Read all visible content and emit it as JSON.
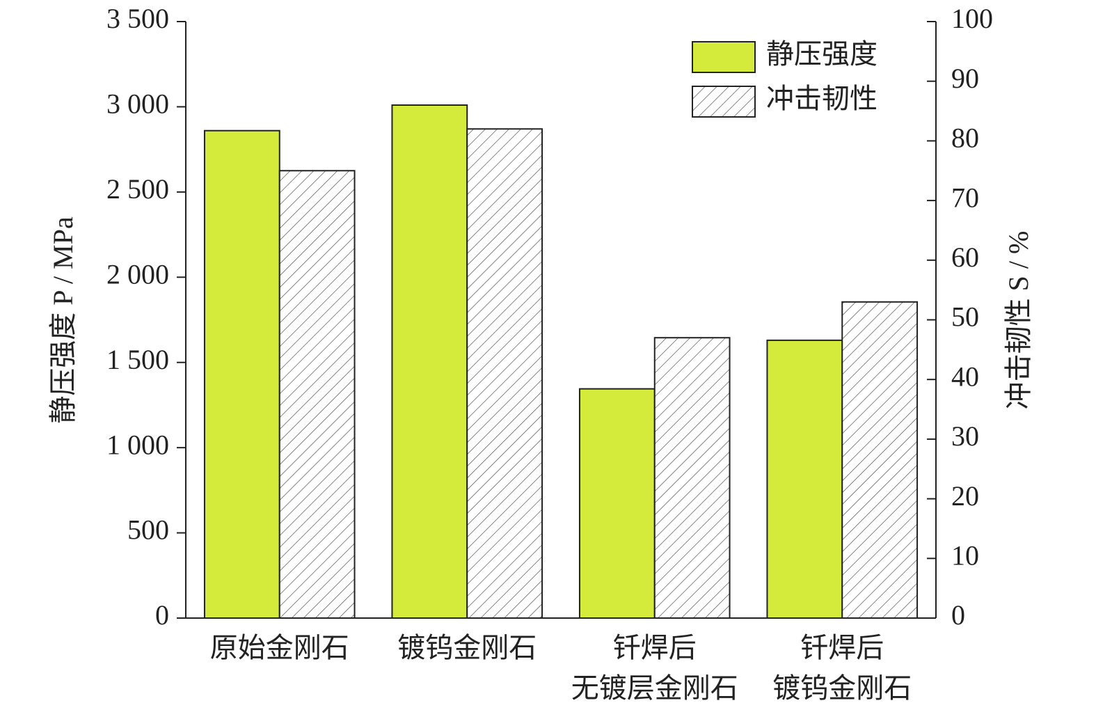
{
  "chart_data": {
    "type": "bar",
    "categories": [
      [
        "原始金刚石"
      ],
      [
        "镀钨金刚石"
      ],
      [
        "钎焊后",
        "无镀层金刚石"
      ],
      [
        "钎焊后",
        "镀钨金刚石"
      ]
    ],
    "series": [
      {
        "name": "静压强度",
        "color": "#d4eb3c",
        "values": [
          2860,
          3010,
          1345,
          1630
        ]
      },
      {
        "name": "冲击韧性",
        "color": "#ffffff",
        "hatch": true,
        "axis": "y2",
        "values": [
          75,
          82,
          47,
          53
        ]
      }
    ],
    "ylabel": "静压强度 P / MPa",
    "y2label": "冲击韧性 S / %",
    "ylim": [
      0,
      3500
    ],
    "yticks": [
      0,
      500,
      {
        "value": 1000,
        "label": "1 000"
      },
      {
        "value": 1500,
        "label": "1 500"
      },
      {
        "value": 2000,
        "label": "2 000"
      },
      {
        "value": 2500,
        "label": "2 500"
      },
      {
        "value": 3000,
        "label": "3 000"
      },
      {
        "value": 3500,
        "label": "3 500"
      }
    ],
    "y2lim": [
      0,
      100
    ],
    "y2ticks": [
      0,
      10,
      20,
      30,
      40,
      50,
      60,
      70,
      80,
      90,
      100
    ],
    "legend": "upper right",
    "grid": false
  }
}
